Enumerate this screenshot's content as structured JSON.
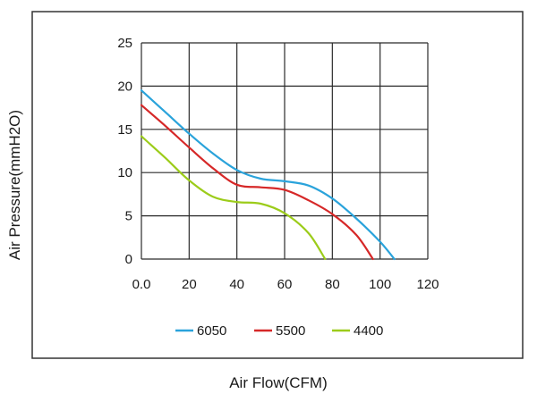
{
  "chart_data": {
    "type": "line",
    "xlabel": "Air Flow(CFM)",
    "ylabel": "Air Pressure(mmH2O)",
    "xlim": [
      0,
      120
    ],
    "ylim": [
      0,
      25
    ],
    "x_ticks": [
      "0.0",
      "20",
      "40",
      "60",
      "80",
      "100",
      "120"
    ],
    "y_ticks": [
      "0",
      "5",
      "10",
      "15",
      "20",
      "25"
    ],
    "grid": true,
    "legend_position": "bottom",
    "series": [
      {
        "name": "6050",
        "color": "#2aa3db",
        "points": [
          [
            0,
            19.5
          ],
          [
            10,
            17.0
          ],
          [
            20,
            14.5
          ],
          [
            30,
            12.2
          ],
          [
            40,
            10.3
          ],
          [
            50,
            9.3
          ],
          [
            60,
            9.0
          ],
          [
            70,
            8.5
          ],
          [
            80,
            7.0
          ],
          [
            90,
            4.7
          ],
          [
            100,
            2.0
          ],
          [
            106,
            0
          ]
        ]
      },
      {
        "name": "5500",
        "color": "#d62828",
        "points": [
          [
            0,
            17.8
          ],
          [
            10,
            15.4
          ],
          [
            20,
            12.9
          ],
          [
            30,
            10.5
          ],
          [
            40,
            8.6
          ],
          [
            50,
            8.3
          ],
          [
            60,
            8.0
          ],
          [
            70,
            6.8
          ],
          [
            80,
            5.2
          ],
          [
            90,
            2.8
          ],
          [
            97,
            0
          ]
        ]
      },
      {
        "name": "4400",
        "color": "#9ccc1a",
        "points": [
          [
            0,
            14.2
          ],
          [
            10,
            11.7
          ],
          [
            20,
            9.1
          ],
          [
            30,
            7.2
          ],
          [
            40,
            6.6
          ],
          [
            50,
            6.4
          ],
          [
            60,
            5.3
          ],
          [
            70,
            3.0
          ],
          [
            77,
            0
          ]
        ]
      }
    ]
  }
}
